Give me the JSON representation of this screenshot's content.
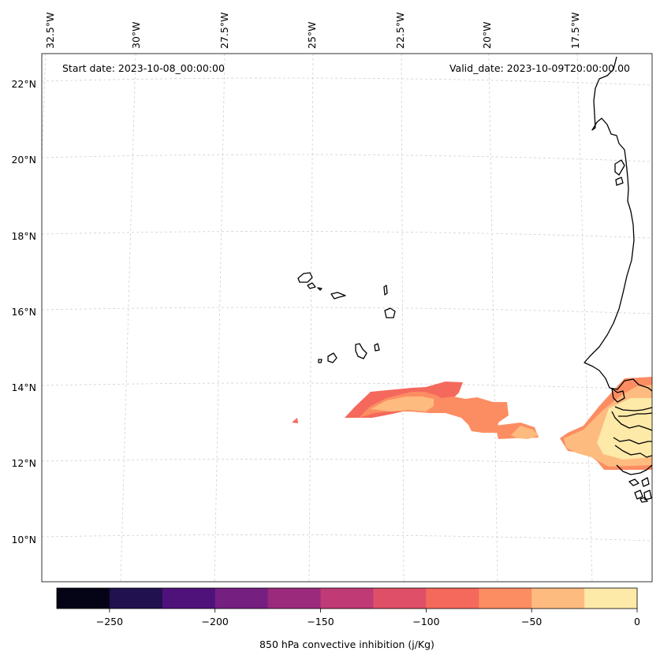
{
  "map": {
    "start_label": "Start date: 2023-10-08_00:00:00",
    "valid_label": "Valid_date: 2023-10-09T20:00:00.00",
    "lon_labels": [
      "32.5°W",
      "30°W",
      "27.5°W",
      "25°W",
      "22.5°W",
      "20°W",
      "17.5°W"
    ],
    "lat_labels": [
      "22°N",
      "20°N",
      "18°N",
      "16°N",
      "14°N",
      "12°N",
      "10°N"
    ],
    "coastline_color": "#000000",
    "gridline_color": "#cccccc"
  },
  "colorbar": {
    "label": "850 hPa convective inhibition (j/Kg)",
    "ticks": [
      "−250",
      "−200",
      "−150",
      "−100",
      "−50",
      "0"
    ],
    "colors": [
      "#050416",
      "#21114e",
      "#4f127b",
      "#751f81",
      "#9b2a7d",
      "#c03a76",
      "#e04f68",
      "#f4695c",
      "#fc8d62",
      "#febb80",
      "#fde9a8"
    ]
  }
}
